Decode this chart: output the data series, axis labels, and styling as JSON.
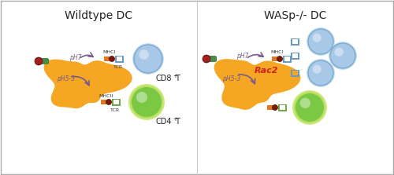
{
  "title_left": "Wildtype DC",
  "title_right": "WASp-/- DC",
  "bg_color": "#ffffff",
  "border_color": "#aaaaaa",
  "dc_color": "#f5a623",
  "t_cell_blue_color": "#a8c8e8",
  "t_cell_blue_border": "#7aaace",
  "t_cell_green_color": "#7ac843",
  "t_cell_green_border": "#b8e060",
  "mhc_color": "#7a1a0a",
  "arrow_color": "#7a5a8a",
  "rac2_color": "#cc2222",
  "ph7_label": "pH7",
  "ph53_label": "pH5-3",
  "mhcI_label": "MHCI",
  "mhcII_label": "MHCII",
  "tcr_label": "TCR",
  "cd8_label": "CD8",
  "cd4_label": "CD4",
  "rac2_label": "Rac2"
}
